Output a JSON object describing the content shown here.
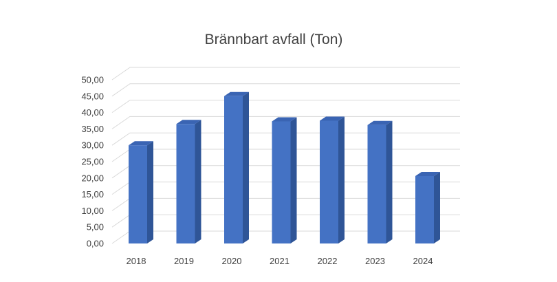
{
  "chart_data": {
    "type": "bar",
    "title": "Brännbart avfall (Ton)",
    "categories": [
      "2018",
      "2019",
      "2020",
      "2021",
      "2022",
      "2023",
      "2024"
    ],
    "values": [
      30.0,
      36.5,
      45.0,
      37.3,
      37.5,
      36.2,
      20.6
    ],
    "ylim": [
      0,
      50
    ],
    "ytick_labels": [
      "0,00",
      "5,00",
      "10,00",
      "15,00",
      "20,00",
      "25,00",
      "30,00",
      "35,00",
      "40,00",
      "45,00",
      "50,00"
    ],
    "grid": true,
    "legend": "none",
    "colors": {
      "bar_front": "#4472C4",
      "bar_side": "#2F5597",
      "bar_top": "#3A64B3",
      "grid": "#D9D9D9",
      "text": "#404040"
    }
  }
}
